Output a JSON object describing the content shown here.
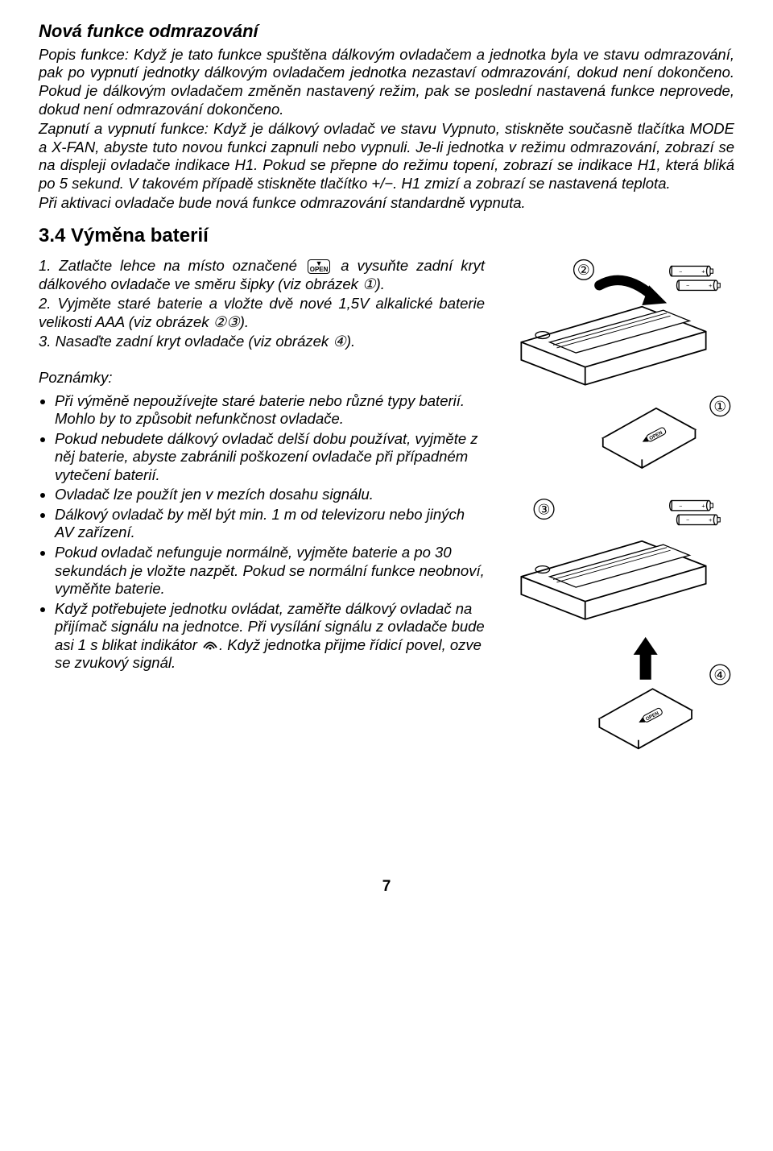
{
  "heading": "Nová funkce odmrazování",
  "para1_prefix": "Popis funkce:",
  "para1_body": " Když je tato funkce spuštěna dálkovým ovladačem a jednotka byla ve stavu odmrazování, pak po vypnutí jednotky dálkovým ovladačem jednotka nezastaví odmrazování, dokud není dokončeno. Pokud je dálkovým ovladačem změněn nastavený režim, pak se poslední nastavená funkce neprovede, dokud není odmrazování dokončeno.",
  "para2_prefix": "Zapnutí a vypnutí funkce:",
  "para2_body": " Když je dálkový ovladač ve stavu Vypnuto, stiskněte současně tlačítka MODE a X-FAN, abyste tuto novou funkci zapnuli nebo vypnuli. Je-li jednotka v režimu odmrazování, zobrazí se na displeji ovladače indikace H1. Pokud se přepne do režimu topení, zobrazí se indikace H1, která bliká po 5 sekund. V takovém případě stiskněte tlačítko +/−. H1 zmizí a zobrazí se nastavená teplota.",
  "para3": "Při aktivaci ovladače bude nová funkce odmrazování standardně vypnuta.",
  "section_title": "3.4 Výměna baterií",
  "step1_a": "1. Zatlačte lehce na místo označené",
  "step1_b": "a vysuňte zadní kryt dálkového ovladače ve směru šipky (viz obrázek ①).",
  "step2": "2. Vyjměte staré baterie a vložte dvě nové 1,5V alkalické baterie velikosti AAA (viz obrázek ②③).",
  "step3": "3. Nasaďte zadní kryt ovladače (viz obrázek ④).",
  "notes_label": "Poznámky:",
  "bullets": [
    "Při výměně nepoužívejte staré baterie nebo různé typy baterií. Mohlo by to způsobit nefunkčnost ovladače.",
    "Pokud nebudete dálkový ovladač delší dobu používat, vyjměte z něj baterie, abyste zabránili poškození ovladače při případném vytečení baterií.",
    "Ovladač lze použít jen v mezích dosahu signálu.",
    "Dálkový ovladač by měl být min. 1 m od televizoru nebo jiných AV zařízení.",
    "Pokud ovladač nefunguje normálně, vyjměte baterie a po 30 sekundách je vložte nazpět. Pokud se normální funkce neobnoví, vyměňte baterie.",
    "Když potřebujete jednotku ovládat, zaměřte dálkový ovladač na přijímač signálu na jednotce. Při vysílání signálu z ovladače bude asi 1 s blikat indikátor SIGNAL. Když jednotka přijme řídicí povel, ozve se zvukový signál."
  ],
  "open_label": "OPEN",
  "page_number": "7",
  "diagram_labels": {
    "n1": "①",
    "n2": "②",
    "n3": "③",
    "n4": "④"
  },
  "colors": {
    "text": "#000000",
    "bg": "#ffffff",
    "stroke": "#000000"
  }
}
